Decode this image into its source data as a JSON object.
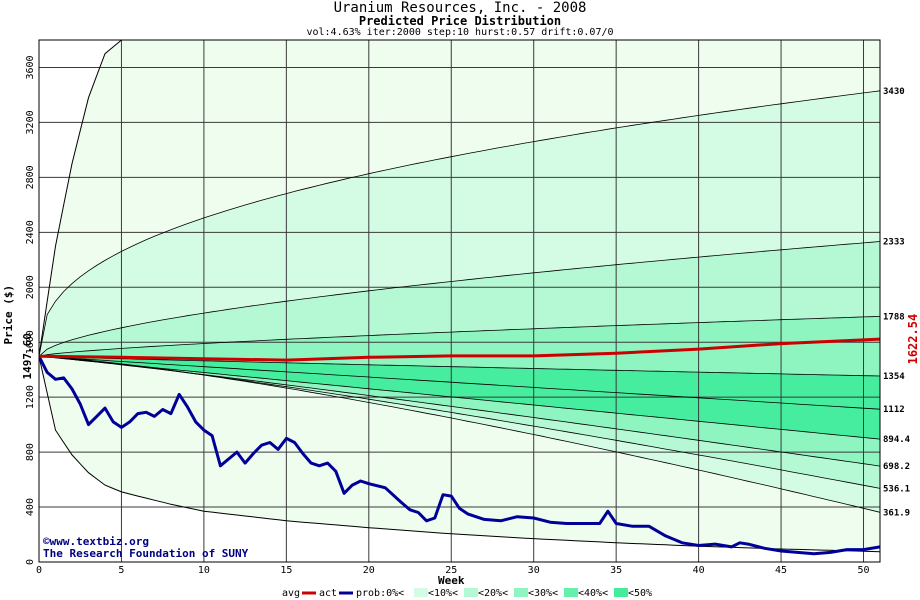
{
  "chart_data": {
    "type": "area",
    "title": "Uranium Resources, Inc. - 2008",
    "subtitle": "Predicted Price Distribution",
    "params": "vol:4.63% iter:2000 step:10 hurst:0.57 drift:0.07/0",
    "xlabel": "Week",
    "ylabel": "Price ($)",
    "xlim": [
      0,
      51
    ],
    "ylim": [
      0,
      3800
    ],
    "xticks": [
      0,
      5,
      10,
      15,
      20,
      25,
      30,
      35,
      40,
      45,
      50
    ],
    "yticks": [
      0,
      400,
      800,
      1200,
      1600,
      2000,
      2400,
      2800,
      3200,
      3600
    ],
    "grid": true,
    "start_price": 1497.6,
    "start_label": "1497.60",
    "end_avg_label": "1622.54",
    "band_end_labels": [
      "3430",
      "2333",
      "1788",
      "1354",
      "1112",
      "894.4",
      "698.2",
      "536.1",
      "361.9"
    ],
    "band_colors": {
      "0%": "#eefdee",
      "10%": "#d4fce4",
      "20%": "#b4f8d4",
      "30%": "#8ef4c0",
      "40%": "#66f0ac",
      "50%": "#44ec9c"
    },
    "envelope": {
      "upper": [
        [
          0,
          1497.6
        ],
        [
          1,
          2300
        ],
        [
          2,
          2900
        ],
        [
          3,
          3380
        ],
        [
          4,
          3700
        ],
        [
          5,
          3800
        ]
      ],
      "lower": [
        [
          0,
          1497.6
        ],
        [
          1,
          960
        ],
        [
          2,
          780
        ],
        [
          3,
          650
        ],
        [
          4,
          560
        ],
        [
          5,
          510
        ],
        [
          8,
          420
        ],
        [
          10,
          370
        ],
        [
          15,
          300
        ],
        [
          20,
          250
        ],
        [
          25,
          205
        ],
        [
          30,
          170
        ],
        [
          35,
          140
        ],
        [
          40,
          115
        ],
        [
          45,
          95
        ],
        [
          51,
          75
        ]
      ]
    },
    "percentile_curves": [
      {
        "end": 3430,
        "k": 0.4
      },
      {
        "end": 2333,
        "k": 0.6
      },
      {
        "end": 1788,
        "k": 0.7
      },
      {
        "end": 1354,
        "k": 0.9
      },
      {
        "end": 1112,
        "k": 1.0
      },
      {
        "end": 894.4,
        "k": 1.0
      },
      {
        "end": 698.2,
        "k": 1.1
      },
      {
        "end": 536.1,
        "k": 1.2
      },
      {
        "end": 361.9,
        "k": 1.3
      }
    ],
    "series": [
      {
        "name": "avg",
        "color": "#cc0000",
        "points": [
          [
            0,
            1497.6
          ],
          [
            5,
            1490
          ],
          [
            10,
            1480
          ],
          [
            15,
            1470
          ],
          [
            20,
            1490
          ],
          [
            25,
            1500
          ],
          [
            30,
            1500
          ],
          [
            35,
            1520
          ],
          [
            40,
            1550
          ],
          [
            45,
            1590
          ],
          [
            51,
            1622.54
          ]
        ]
      },
      {
        "name": "act",
        "color": "#000099",
        "points": [
          [
            0,
            1497.6
          ],
          [
            0.5,
            1380
          ],
          [
            1,
            1330
          ],
          [
            1.5,
            1340
          ],
          [
            2,
            1260
          ],
          [
            2.5,
            1150
          ],
          [
            3,
            1000
          ],
          [
            3.5,
            1060
          ],
          [
            4,
            1120
          ],
          [
            4.5,
            1020
          ],
          [
            5,
            980
          ],
          [
            5.5,
            1020
          ],
          [
            6,
            1080
          ],
          [
            6.5,
            1090
          ],
          [
            7,
            1060
          ],
          [
            7.5,
            1110
          ],
          [
            8,
            1080
          ],
          [
            8.5,
            1220
          ],
          [
            9,
            1130
          ],
          [
            9.5,
            1020
          ],
          [
            10,
            960
          ],
          [
            10.5,
            920
          ],
          [
            11,
            700
          ],
          [
            11.5,
            750
          ],
          [
            12,
            800
          ],
          [
            12.5,
            720
          ],
          [
            13,
            790
          ],
          [
            13.5,
            850
          ],
          [
            14,
            870
          ],
          [
            14.5,
            820
          ],
          [
            15,
            900
          ],
          [
            15.5,
            870
          ],
          [
            16,
            790
          ],
          [
            16.5,
            720
          ],
          [
            17,
            700
          ],
          [
            17.5,
            720
          ],
          [
            18,
            660
          ],
          [
            18.5,
            500
          ],
          [
            19,
            560
          ],
          [
            19.5,
            590
          ],
          [
            20,
            570
          ],
          [
            21,
            540
          ],
          [
            22,
            430
          ],
          [
            22.5,
            380
          ],
          [
            23,
            360
          ],
          [
            23.5,
            300
          ],
          [
            24,
            320
          ],
          [
            24.5,
            490
          ],
          [
            25,
            480
          ],
          [
            25.5,
            390
          ],
          [
            26,
            350
          ],
          [
            27,
            310
          ],
          [
            28,
            300
          ],
          [
            29,
            330
          ],
          [
            30,
            320
          ],
          [
            31,
            290
          ],
          [
            32,
            280
          ],
          [
            33,
            280
          ],
          [
            34,
            280
          ],
          [
            34.5,
            370
          ],
          [
            35,
            280
          ],
          [
            36,
            260
          ],
          [
            37,
            260
          ],
          [
            38,
            190
          ],
          [
            39,
            140
          ],
          [
            40,
            120
          ],
          [
            41,
            130
          ],
          [
            42,
            110
          ],
          [
            42.5,
            140
          ],
          [
            43,
            130
          ],
          [
            44,
            100
          ],
          [
            45,
            80
          ],
          [
            46,
            70
          ],
          [
            47,
            60
          ],
          [
            48,
            70
          ],
          [
            49,
            90
          ],
          [
            50,
            90
          ],
          [
            51,
            110
          ]
        ]
      }
    ],
    "legend": {
      "position": "bottom",
      "items": [
        "avg",
        "act",
        "prob:0%<",
        "<10%<",
        "<20%<",
        "<30%<",
        "<40%<",
        "<50%"
      ]
    },
    "watermark_line1": "www.textbiz.org",
    "watermark_line2": "The Research Foundation of SUNY"
  }
}
